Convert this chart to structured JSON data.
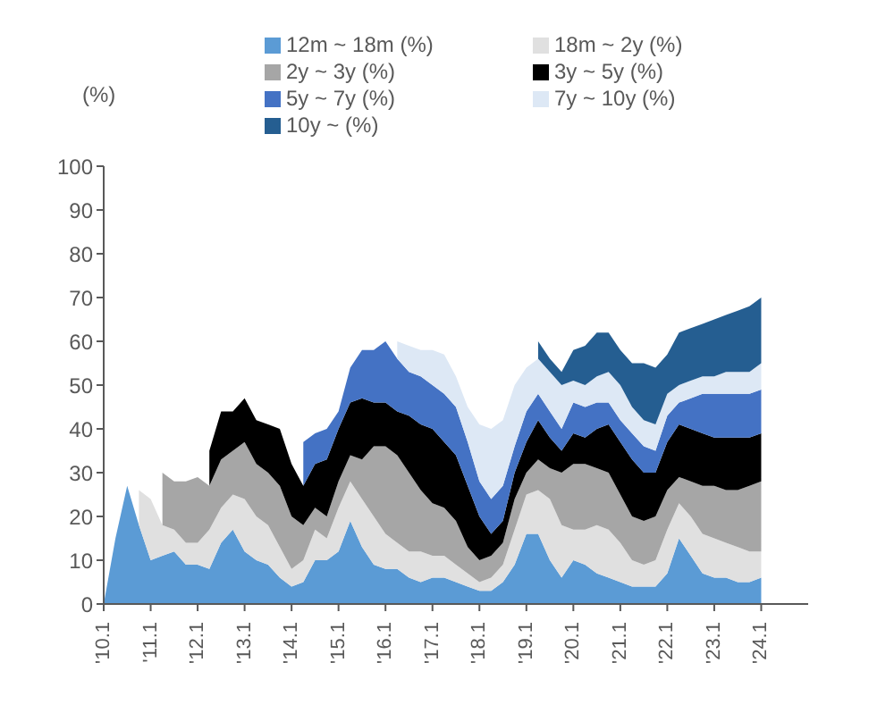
{
  "chart_data": {
    "type": "area",
    "stacked": true,
    "ylabel": "(%)",
    "x": [
      "2010-01",
      "2010-04",
      "2010-07",
      "2010-10",
      "2011-01",
      "2011-04",
      "2011-07",
      "2011-10",
      "2012-01",
      "2012-04",
      "2012-07",
      "2012-10",
      "2013-01",
      "2013-04",
      "2013-07",
      "2013-10",
      "2014-01",
      "2014-04",
      "2014-07",
      "2014-10",
      "2015-01",
      "2015-04",
      "2015-07",
      "2015-10",
      "2016-01",
      "2016-04",
      "2016-07",
      "2016-10",
      "2017-01",
      "2017-04",
      "2017-07",
      "2017-10",
      "2018-01",
      "2018-04",
      "2018-07",
      "2018-10",
      "2019-01",
      "2019-04",
      "2019-07",
      "2019-10",
      "2020-01",
      "2020-04",
      "2020-07",
      "2020-10",
      "2021-01",
      "2021-04",
      "2021-07",
      "2021-10",
      "2022-01",
      "2022-04",
      "2022-07",
      "2022-10",
      "2023-01",
      "2023-04",
      "2023-07",
      "2023-10",
      "2024-01"
    ],
    "series": [
      {
        "name": "12m ~ 18m (%)",
        "color": "#5b9bd5",
        "values": [
          0,
          15,
          27,
          18,
          10,
          11,
          12,
          9,
          9,
          8,
          14,
          17,
          12,
          10,
          9,
          6,
          4,
          5,
          10,
          10,
          12,
          19,
          13,
          9,
          8,
          8,
          6,
          5,
          6,
          6,
          5,
          4,
          3,
          3,
          5,
          9,
          16,
          16,
          10,
          6,
          10,
          9,
          7,
          6,
          5,
          4,
          4,
          4,
          7,
          15,
          11,
          7,
          6,
          6,
          5,
          5,
          6
        ]
      },
      {
        "name": "18m ~ 2y (%)",
        "color": "#e0e0e0",
        "values": [
          null,
          null,
          null,
          8,
          14,
          7,
          5,
          5,
          5,
          9,
          8,
          8,
          12,
          10,
          9,
          7,
          4,
          5,
          7,
          5,
          10,
          9,
          11,
          11,
          8,
          6,
          6,
          7,
          5,
          5,
          4,
          3,
          2,
          3,
          4,
          8,
          9,
          10,
          14,
          12,
          7,
          8,
          11,
          11,
          9,
          6,
          5,
          6,
          10,
          8,
          9,
          9,
          9,
          8,
          8,
          7,
          6
        ]
      },
      {
        "name": "2y ~ 3y (%)",
        "color": "#a6a6a6",
        "values": [
          null,
          null,
          null,
          null,
          null,
          12,
          11,
          14,
          15,
          10,
          11,
          10,
          13,
          12,
          12,
          14,
          12,
          8,
          5,
          5,
          6,
          6,
          9,
          16,
          20,
          20,
          18,
          14,
          12,
          11,
          10,
          6,
          5,
          5,
          5,
          7,
          5,
          7,
          7,
          12,
          15,
          15,
          13,
          13,
          11,
          10,
          10,
          10,
          9,
          6,
          8,
          11,
          12,
          12,
          13,
          15,
          16
        ]
      },
      {
        "name": "3y ~ 5y (%)",
        "color": "#000000",
        "values": [
          null,
          null,
          null,
          null,
          null,
          null,
          null,
          null,
          null,
          8,
          11,
          9,
          10,
          10,
          11,
          13,
          12,
          9,
          10,
          13,
          12,
          12,
          14,
          10,
          10,
          10,
          13,
          15,
          17,
          15,
          15,
          14,
          10,
          5,
          5,
          6,
          7,
          9,
          7,
          5,
          7,
          6,
          9,
          11,
          12,
          13,
          11,
          10,
          11,
          12,
          12,
          12,
          11,
          12,
          12,
          11,
          11
        ]
      },
      {
        "name": "5y ~ 7y (%)",
        "color": "#4472c4",
        "values": [
          null,
          null,
          null,
          null,
          null,
          null,
          null,
          null,
          null,
          null,
          null,
          null,
          null,
          null,
          null,
          null,
          null,
          10,
          7,
          7,
          4,
          8,
          11,
          12,
          14,
          12,
          10,
          11,
          10,
          11,
          11,
          10,
          8,
          8,
          8,
          6,
          7,
          6,
          6,
          5,
          7,
          7,
          6,
          5,
          5,
          6,
          6,
          5,
          6,
          5,
          7,
          9,
          10,
          10,
          10,
          10,
          10
        ]
      },
      {
        "name": "7y ~ 10y (%)",
        "color": "#dde8f5",
        "values": [
          null,
          null,
          null,
          null,
          null,
          null,
          null,
          null,
          null,
          null,
          null,
          null,
          null,
          null,
          null,
          null,
          null,
          null,
          null,
          null,
          null,
          null,
          null,
          null,
          null,
          4,
          6,
          6,
          8,
          9,
          7,
          8,
          13,
          16,
          15,
          14,
          10,
          8,
          9,
          10,
          5,
          5,
          6,
          7,
          8,
          6,
          6,
          6,
          5,
          4,
          4,
          4,
          4,
          5,
          5,
          5,
          6
        ]
      },
      {
        "name": "10y ~ (%)",
        "color": "#255e91",
        "values": [
          null,
          null,
          null,
          null,
          null,
          null,
          null,
          null,
          null,
          null,
          null,
          null,
          null,
          null,
          null,
          null,
          null,
          null,
          null,
          null,
          null,
          null,
          null,
          null,
          null,
          null,
          null,
          null,
          null,
          null,
          null,
          null,
          null,
          null,
          null,
          null,
          null,
          4,
          3,
          3,
          7,
          9,
          10,
          9,
          8,
          10,
          13,
          13,
          9,
          12,
          12,
          12,
          13,
          13,
          14,
          15,
          15
        ]
      }
    ],
    "xlim": [
      "2010-01",
      "2025-01"
    ],
    "xticks": [
      {
        "value": "2010-01",
        "label": "'10.1"
      },
      {
        "value": "2011-01",
        "label": "'11.1"
      },
      {
        "value": "2012-01",
        "label": "'12.1"
      },
      {
        "value": "2013-01",
        "label": "'13.1"
      },
      {
        "value": "2014-01",
        "label": "'14.1"
      },
      {
        "value": "2015-01",
        "label": "'15.1"
      },
      {
        "value": "2016-01",
        "label": "'16.1"
      },
      {
        "value": "2017-01",
        "label": "'17.1"
      },
      {
        "value": "2018-01",
        "label": "'18.1"
      },
      {
        "value": "2019-01",
        "label": "'19.1"
      },
      {
        "value": "2020-01",
        "label": "'20.1"
      },
      {
        "value": "2021-01",
        "label": "'21.1"
      },
      {
        "value": "2022-01",
        "label": "'22.1"
      },
      {
        "value": "2023-01",
        "label": "'23.1"
      },
      {
        "value": "2024-01",
        "label": "'24.1"
      }
    ],
    "ylim": [
      0,
      100
    ],
    "yticks": [
      0,
      10,
      20,
      30,
      40,
      50,
      60,
      70,
      80,
      90,
      100
    ],
    "legend": "top"
  }
}
